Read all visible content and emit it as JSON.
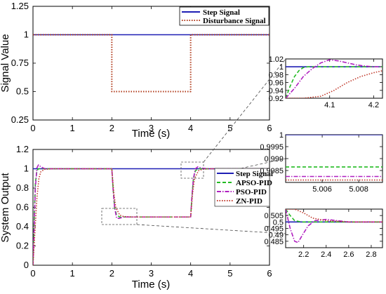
{
  "chart_data": [
    {
      "id": "top",
      "type": "line",
      "xlabel": "Time (s)",
      "ylabel": "Signal Value",
      "xlim": [
        0,
        6
      ],
      "ylim": [
        0.25,
        1.25
      ],
      "xticks": [
        "0",
        "1",
        "2",
        "3",
        "4",
        "5",
        "6"
      ],
      "yticks": [
        "0.25",
        "0.5",
        "0.75",
        "1",
        "1.25"
      ],
      "legend_position": "top-right",
      "series": [
        {
          "name": "Step Signal",
          "color": "#1f1fb4",
          "style": "solid",
          "x": [
            0,
            6
          ],
          "y": [
            1,
            1
          ]
        },
        {
          "name": "Disturbance Signal",
          "color": "#b03a1a",
          "style": "dotted",
          "x": [
            0,
            2,
            2,
            4,
            4,
            6
          ],
          "y": [
            1,
            1,
            0.5,
            0.5,
            1,
            1
          ]
        }
      ]
    },
    {
      "id": "bottom",
      "type": "line",
      "xlabel": "Time (s)",
      "ylabel": "System Output",
      "xlim": [
        0,
        6
      ],
      "ylim": [
        0,
        1.2
      ],
      "xticks": [
        "0",
        "1",
        "2",
        "3",
        "4",
        "5",
        "6"
      ],
      "yticks": [
        "0",
        "0.2",
        "0.4",
        "0.6",
        "0.8",
        "1",
        "1.2"
      ],
      "legend_position": "right",
      "series": [
        {
          "name": "Step Signal",
          "color": "#1f1fb4",
          "style": "solid",
          "x": [
            0,
            6
          ],
          "y": [
            1,
            1
          ]
        },
        {
          "name": "APSO-PID",
          "color": "#22bb22",
          "style": "dashed",
          "x": [
            0,
            0.03,
            0.06,
            0.1,
            0.14,
            0.2,
            0.3,
            2.0,
            2.03,
            2.07,
            2.12,
            2.2,
            2.4,
            4.0,
            4.03,
            4.07,
            4.12,
            4.2,
            4.4,
            6
          ],
          "y": [
            0,
            0.45,
            0.85,
            0.98,
            1.0,
            1.0,
            1.0,
            1.0,
            0.8,
            0.6,
            0.52,
            0.5,
            0.5,
            0.5,
            0.7,
            0.9,
            0.98,
            1.0,
            1.0,
            1.0
          ]
        },
        {
          "name": "PSO-PID",
          "color": "#b020c0",
          "style": "dashdot",
          "x": [
            0,
            0.03,
            0.06,
            0.1,
            0.14,
            0.2,
            0.3,
            0.5,
            2.0,
            2.03,
            2.07,
            2.12,
            2.18,
            2.3,
            2.5,
            4.0,
            4.03,
            4.07,
            4.12,
            4.18,
            4.3,
            4.5,
            6
          ],
          "y": [
            0,
            0.4,
            0.8,
            1.01,
            1.04,
            1.02,
            1.0,
            1.0,
            1.0,
            0.8,
            0.6,
            0.49,
            0.485,
            0.5,
            0.5,
            0.5,
            0.7,
            0.9,
            1.0,
            1.02,
            1.005,
            1.0,
            1.0
          ]
        },
        {
          "name": "ZN-PID",
          "color": "#c0392b",
          "style": "dotted",
          "x": [
            0,
            0.05,
            0.1,
            0.15,
            0.2,
            0.3,
            0.5,
            2.0,
            2.05,
            2.1,
            2.2,
            2.3,
            2.5,
            4.0,
            4.05,
            4.1,
            4.2,
            4.3,
            4.5,
            6
          ],
          "y": [
            0,
            0.35,
            0.7,
            0.9,
            0.97,
            0.995,
            1.0,
            1.0,
            0.75,
            0.6,
            0.52,
            0.505,
            0.5,
            0.5,
            0.75,
            0.9,
            0.98,
            0.995,
            1.0,
            1.0
          ]
        }
      ]
    },
    {
      "id": "inset1",
      "type": "line",
      "xlim": [
        4.0,
        4.22
      ],
      "ylim": [
        0.92,
        1.02
      ],
      "xticks": [
        "4.1",
        "4.2"
      ],
      "yticks": [
        "0.92",
        "0.94",
        "0.96",
        "0.98",
        "1",
        "1.02"
      ],
      "series": [
        {
          "name": "Step Signal",
          "x": [
            4.0,
            4.22
          ],
          "y": [
            1.0,
            1.0
          ]
        },
        {
          "name": "APSO-PID",
          "x": [
            4.0,
            4.01,
            4.02,
            4.03,
            4.04,
            4.05,
            4.07,
            4.22
          ],
          "y": [
            0.92,
            0.95,
            0.975,
            0.99,
            0.998,
            1.0,
            1.0,
            1.0
          ]
        },
        {
          "name": "PSO-PID",
          "x": [
            4.0,
            4.02,
            4.04,
            4.06,
            4.08,
            4.1,
            4.12,
            4.14,
            4.16,
            4.18,
            4.2,
            4.22
          ],
          "y": [
            0.92,
            0.945,
            0.975,
            0.995,
            1.01,
            1.018,
            1.015,
            1.01,
            1.005,
            1.002,
            1.0,
            1.0
          ]
        },
        {
          "name": "ZN-PID",
          "x": [
            4.0,
            4.04,
            4.08,
            4.11,
            4.14,
            4.17,
            4.2,
            4.22
          ],
          "y": [
            0.92,
            0.92,
            0.925,
            0.94,
            0.96,
            0.975,
            0.985,
            0.99
          ]
        }
      ]
    },
    {
      "id": "inset2",
      "type": "line",
      "xlim": [
        5.004,
        5.0093
      ],
      "ylim": [
        0.998,
        1.0
      ],
      "xticks": [
        "5.006",
        "5.008"
      ],
      "yticks": [
        "0.9985",
        "0.999",
        "0.9995",
        "1"
      ],
      "series": [
        {
          "name": "Step Signal",
          "x": [
            5.004,
            5.0093
          ],
          "y": [
            1.0,
            1.0
          ]
        },
        {
          "name": "APSO-PID",
          "x": [
            5.004,
            5.0093
          ],
          "y": [
            0.99865,
            0.99865
          ]
        },
        {
          "name": "PSO-PID",
          "x": [
            5.004,
            5.0093
          ],
          "y": [
            0.99825,
            0.99825
          ]
        },
        {
          "name": "ZN-PID",
          "x": [
            5.004,
            5.0093
          ],
          "y": [
            0.9981,
            0.9981
          ]
        }
      ]
    },
    {
      "id": "inset3",
      "type": "line",
      "xlim": [
        2.04,
        2.9
      ],
      "ylim": [
        0.48,
        0.51
      ],
      "xticks": [
        "2.2",
        "2.4",
        "2.6",
        "2.8"
      ],
      "yticks": [
        "0.485",
        "0.49",
        "0.495",
        "0.5",
        "0.505"
      ],
      "series": [
        {
          "name": "Step Signal",
          "x": [
            2.04,
            2.9
          ],
          "y": [
            0.5,
            0.5
          ]
        },
        {
          "name": "APSO-PID",
          "x": [
            2.04,
            2.08,
            2.12,
            2.18,
            2.3,
            2.9
          ],
          "y": [
            0.51,
            0.505,
            0.501,
            0.5,
            0.5,
            0.5
          ]
        },
        {
          "name": "PSO-PID",
          "x": [
            2.04,
            2.08,
            2.12,
            2.15,
            2.19,
            2.24,
            2.3,
            2.4,
            2.6,
            2.9
          ],
          "y": [
            0.51,
            0.495,
            0.485,
            0.484,
            0.49,
            0.497,
            0.501,
            0.502,
            0.5,
            0.5
          ]
        },
        {
          "name": "ZN-PID",
          "x": [
            2.04,
            2.12,
            2.2,
            2.28,
            2.4,
            2.6,
            2.9
          ],
          "y": [
            0.51,
            0.51,
            0.507,
            0.503,
            0.501,
            0.5,
            0.5
          ]
        }
      ]
    }
  ]
}
